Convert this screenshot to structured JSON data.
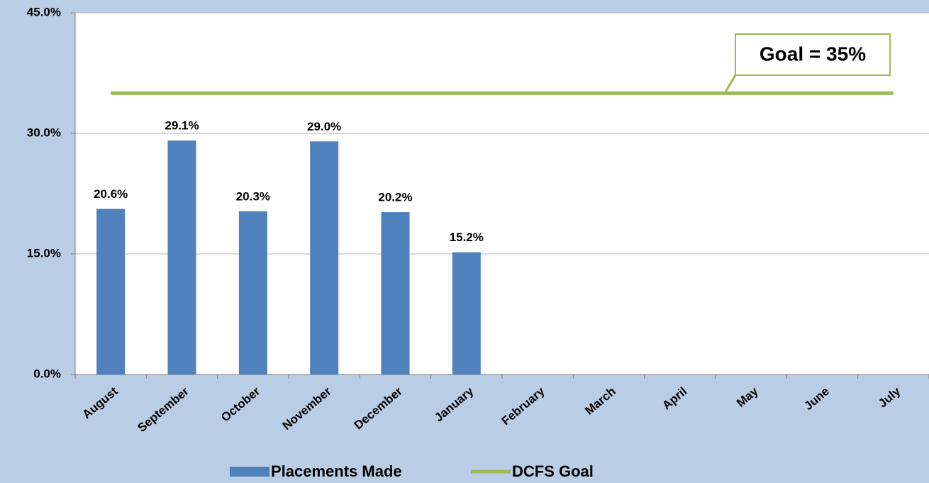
{
  "chart_data": {
    "type": "bar",
    "categories": [
      "August",
      "September",
      "October",
      "November",
      "December",
      "January",
      "February",
      "March",
      "April",
      "May",
      "June",
      "July"
    ],
    "series": [
      {
        "name": "Placements Made",
        "type": "bar",
        "color": "#4f81bd",
        "values": [
          20.6,
          29.1,
          20.3,
          29.0,
          20.2,
          15.2,
          null,
          null,
          null,
          null,
          null,
          null
        ],
        "value_labels": [
          "20.6%",
          "29.1%",
          "20.3%",
          "29.0%",
          "20.2%",
          "15.2%",
          null,
          null,
          null,
          null,
          null,
          null
        ]
      },
      {
        "name": "DCFS Goal",
        "type": "line",
        "color": "#9bbb59",
        "values": [
          35,
          35,
          35,
          35,
          35,
          35,
          35,
          35,
          35,
          35,
          35,
          35
        ]
      }
    ],
    "annotations": [
      "Goal = 35%"
    ],
    "ylim": [
      0,
      45
    ],
    "yticks": [
      {
        "value": 0,
        "label": "0.0%"
      },
      {
        "value": 15,
        "label": "15.0%"
      },
      {
        "value": 30,
        "label": "30.0%"
      },
      {
        "value": 45,
        "label": "45.0%"
      }
    ],
    "grid": true,
    "legend": "bottom"
  }
}
